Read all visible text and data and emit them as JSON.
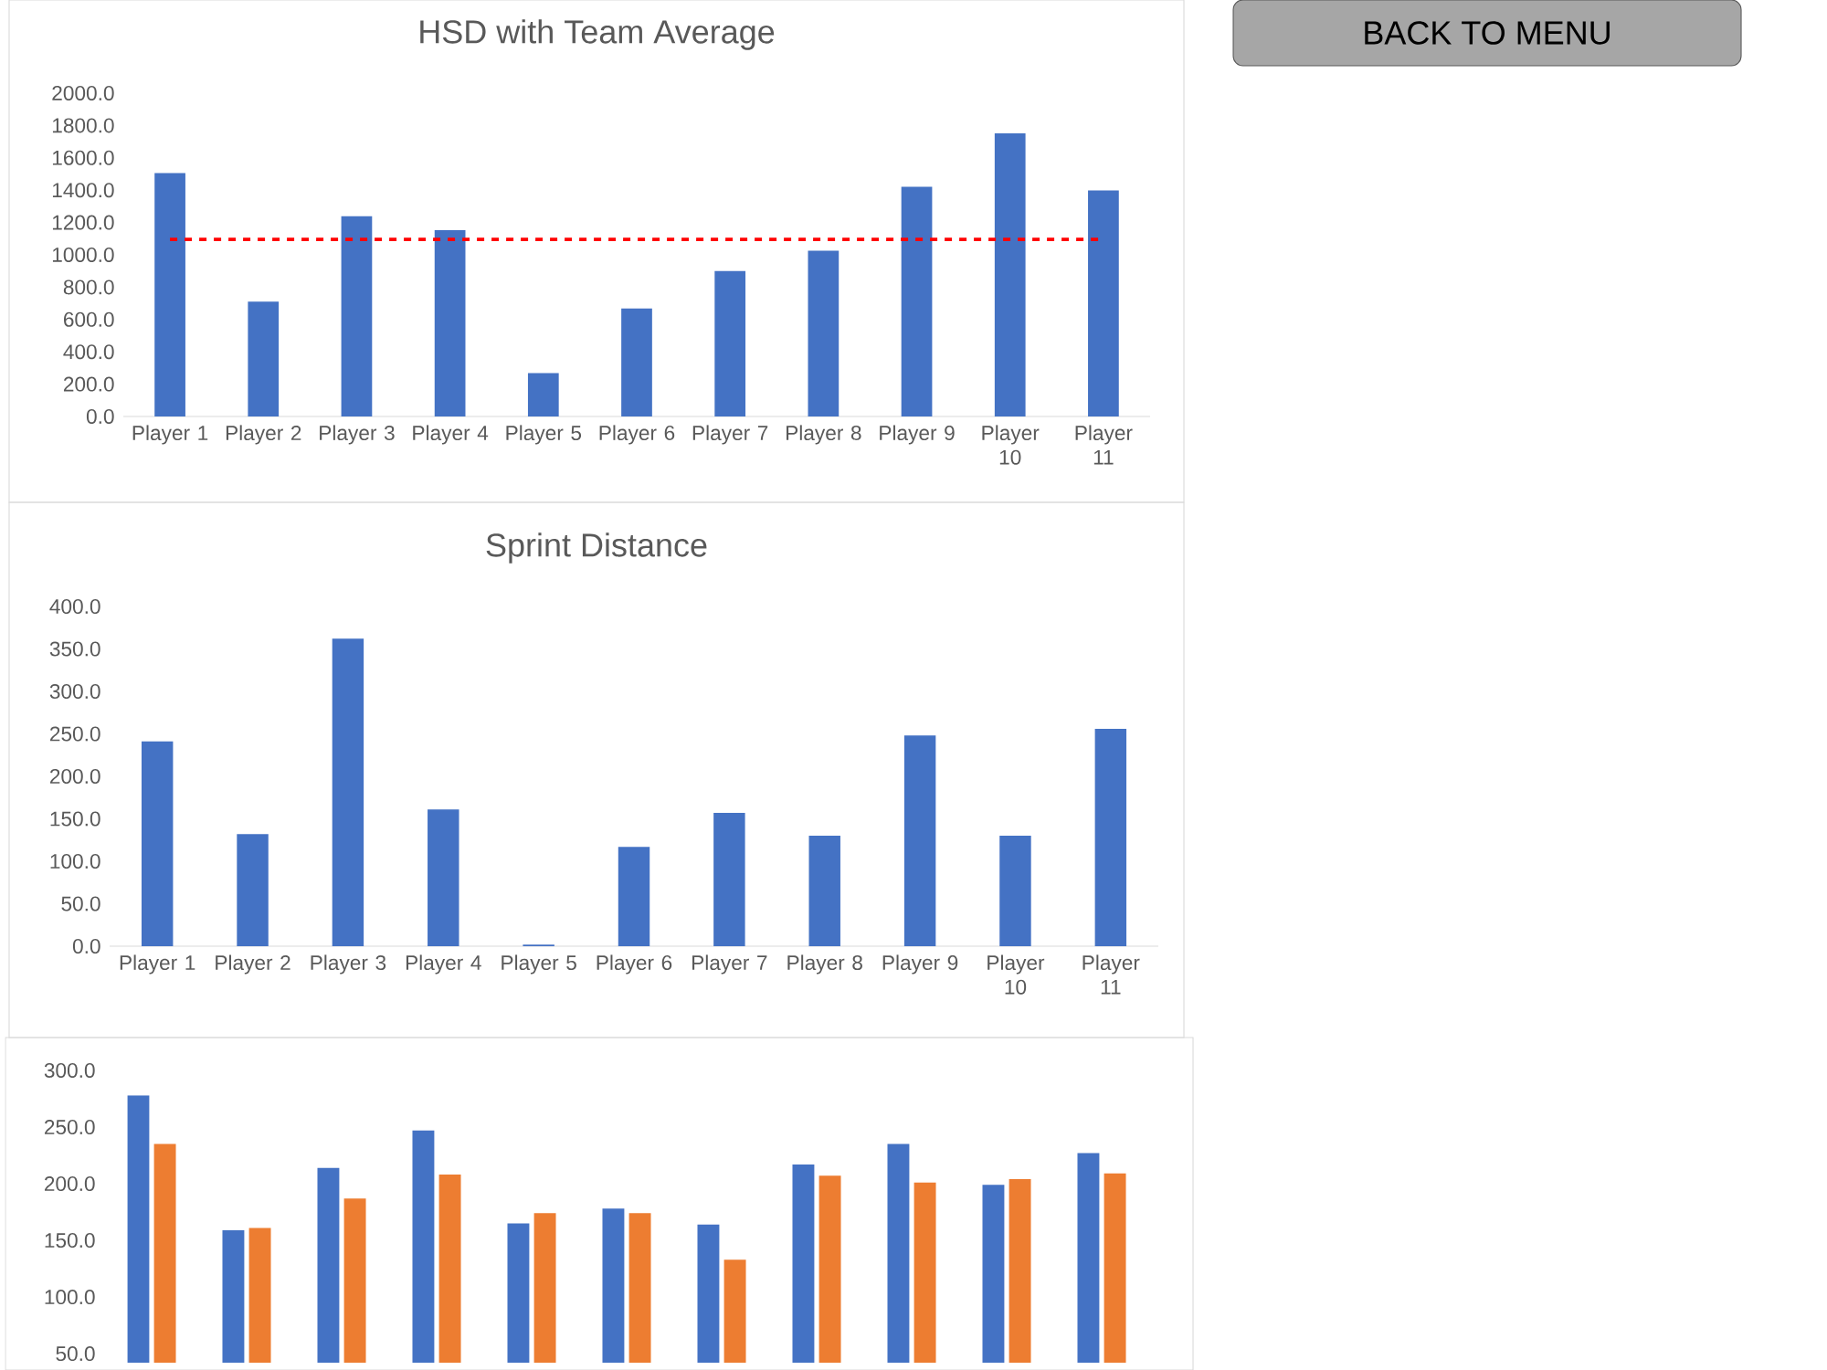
{
  "chart_data": [
    {
      "type": "bar",
      "title": "HSD with Team Average",
      "categories": [
        "Player 1",
        "Player 2",
        "Player 3",
        "Player 4",
        "Player 5",
        "Player 6",
        "Player 7",
        "Player 8",
        "Player 9",
        "Player 10",
        "Player 11"
      ],
      "values": [
        1506,
        711,
        1238,
        1153,
        268,
        668,
        899,
        1026,
        1421,
        1751,
        1398
      ],
      "color": "#4472c4",
      "ylim": [
        0,
        2000
      ],
      "yticks": [
        {
          "value": 0,
          "label": "0.0"
        },
        {
          "value": 200,
          "label": "200.0"
        },
        {
          "value": 400,
          "label": "400.0"
        },
        {
          "value": 600,
          "label": "600.0"
        },
        {
          "value": 800,
          "label": "800.0"
        },
        {
          "value": 1000,
          "label": "1000.0"
        },
        {
          "value": 1200,
          "label": "1200.0"
        },
        {
          "value": 1400,
          "label": "1400.0"
        },
        {
          "value": 1600,
          "label": "1600.0"
        },
        {
          "value": 1800,
          "label": "1800.0"
        },
        {
          "value": 2000,
          "label": "2000.0"
        }
      ],
      "ref_lines": [
        {
          "axis": "y",
          "value": 1095,
          "color": "#ff0000",
          "line_style": "dashed"
        }
      ],
      "grid": false
    },
    {
      "type": "bar",
      "title": "Sprint Distance",
      "categories": [
        "Player 1",
        "Player 2",
        "Player 3",
        "Player 4",
        "Player 5",
        "Player 6",
        "Player 7",
        "Player 8",
        "Player 9",
        "Player 10",
        "Player 11"
      ],
      "values": [
        241,
        132,
        362,
        161,
        2,
        117,
        157,
        130,
        248,
        130,
        256
      ],
      "color": "#4472c4",
      "ylim": [
        0,
        400
      ],
      "yticks": [
        {
          "value": 0,
          "label": "0.0"
        },
        {
          "value": 50,
          "label": "50.0"
        },
        {
          "value": 100,
          "label": "100.0"
        },
        {
          "value": 150,
          "label": "150.0"
        },
        {
          "value": 200,
          "label": "200.0"
        },
        {
          "value": 250,
          "label": "250.0"
        },
        {
          "value": 300,
          "label": "300.0"
        },
        {
          "value": 350,
          "label": "350.0"
        },
        {
          "value": 400,
          "label": "400.0"
        }
      ],
      "grid": false
    },
    {
      "type": "bar",
      "categories": [
        null,
        null,
        null,
        null,
        null,
        null,
        null,
        null,
        null,
        null,
        null
      ],
      "series": [
        {
          "color": "#4472c4",
          "values": [
            278,
            159,
            214,
            247,
            165,
            178,
            164,
            217,
            235,
            199,
            227
          ]
        },
        {
          "color": "#ed7d31",
          "values": [
            235,
            161,
            187,
            208,
            174,
            174,
            133,
            207,
            201,
            204,
            209
          ]
        }
      ],
      "ylim": [
        42,
        300
      ],
      "yticks": [
        {
          "value": 50,
          "label": "50.0"
        },
        {
          "value": 100,
          "label": "100.0"
        },
        {
          "value": 150,
          "label": "150.0"
        },
        {
          "value": 200,
          "label": "200.0"
        },
        {
          "value": 250,
          "label": "250.0"
        },
        {
          "value": 300,
          "label": "300.0"
        }
      ],
      "grid": false
    },
    {
      "type": "other",
      "annotations": [
        "BACK TO MENU"
      ]
    }
  ]
}
